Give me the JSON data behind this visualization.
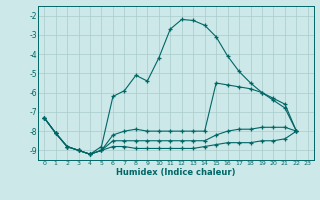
{
  "xlabel": "Humidex (Indice chaleur)",
  "bg_color": "#cce8e8",
  "line_color": "#006666",
  "grid_color": "#aacccc",
  "xlim": [
    -0.5,
    23.5
  ],
  "ylim": [
    -9.5,
    -1.5
  ],
  "yticks": [
    -9,
    -8,
    -7,
    -6,
    -5,
    -4,
    -3,
    -2
  ],
  "xticks": [
    0,
    1,
    2,
    3,
    4,
    5,
    6,
    7,
    8,
    9,
    10,
    11,
    12,
    13,
    14,
    15,
    16,
    17,
    18,
    19,
    20,
    21,
    22,
    23
  ],
  "line1_x": [
    0,
    1,
    2,
    3,
    4,
    5,
    6,
    7,
    8,
    9,
    10,
    11,
    12,
    13,
    14,
    15,
    16,
    17,
    18,
    19,
    20,
    21,
    22
  ],
  "line1_y": [
    -7.3,
    -8.1,
    -8.8,
    -9.0,
    -9.2,
    -8.8,
    -6.2,
    -5.9,
    -5.1,
    -5.4,
    -4.2,
    -2.7,
    -2.2,
    -2.25,
    -2.5,
    -3.1,
    -4.1,
    -4.9,
    -5.5,
    -6.0,
    -6.4,
    -6.8,
    -8.0
  ],
  "line2_x": [
    0,
    1,
    2,
    3,
    4,
    5,
    6,
    7,
    8,
    9,
    10,
    11,
    12,
    13,
    14,
    15,
    16,
    17,
    18,
    19,
    20,
    21,
    22
  ],
  "line2_y": [
    -7.3,
    -8.1,
    -8.8,
    -9.0,
    -9.2,
    -9.0,
    -8.2,
    -8.0,
    -7.9,
    -8.0,
    -8.0,
    -8.0,
    -8.0,
    -8.0,
    -8.0,
    -5.5,
    -5.6,
    -5.7,
    -5.8,
    -6.0,
    -6.3,
    -6.6,
    -8.0
  ],
  "line3_x": [
    0,
    1,
    2,
    3,
    4,
    5,
    6,
    7,
    8,
    9,
    10,
    11,
    12,
    13,
    14,
    15,
    16,
    17,
    18,
    19,
    20,
    21,
    22
  ],
  "line3_y": [
    -7.3,
    -8.1,
    -8.8,
    -9.0,
    -9.2,
    -9.0,
    -8.5,
    -8.5,
    -8.5,
    -8.5,
    -8.5,
    -8.5,
    -8.5,
    -8.5,
    -8.5,
    -8.2,
    -8.0,
    -7.9,
    -7.9,
    -7.8,
    -7.8,
    -7.8,
    -8.0
  ],
  "line4_x": [
    0,
    1,
    2,
    3,
    4,
    5,
    6,
    7,
    8,
    9,
    10,
    11,
    12,
    13,
    14,
    15,
    16,
    17,
    18,
    19,
    20,
    21,
    22
  ],
  "line4_y": [
    -7.3,
    -8.1,
    -8.8,
    -9.0,
    -9.2,
    -9.0,
    -8.8,
    -8.8,
    -8.9,
    -8.9,
    -8.9,
    -8.9,
    -8.9,
    -8.9,
    -8.8,
    -8.7,
    -8.6,
    -8.6,
    -8.6,
    -8.5,
    -8.5,
    -8.4,
    -8.0
  ]
}
